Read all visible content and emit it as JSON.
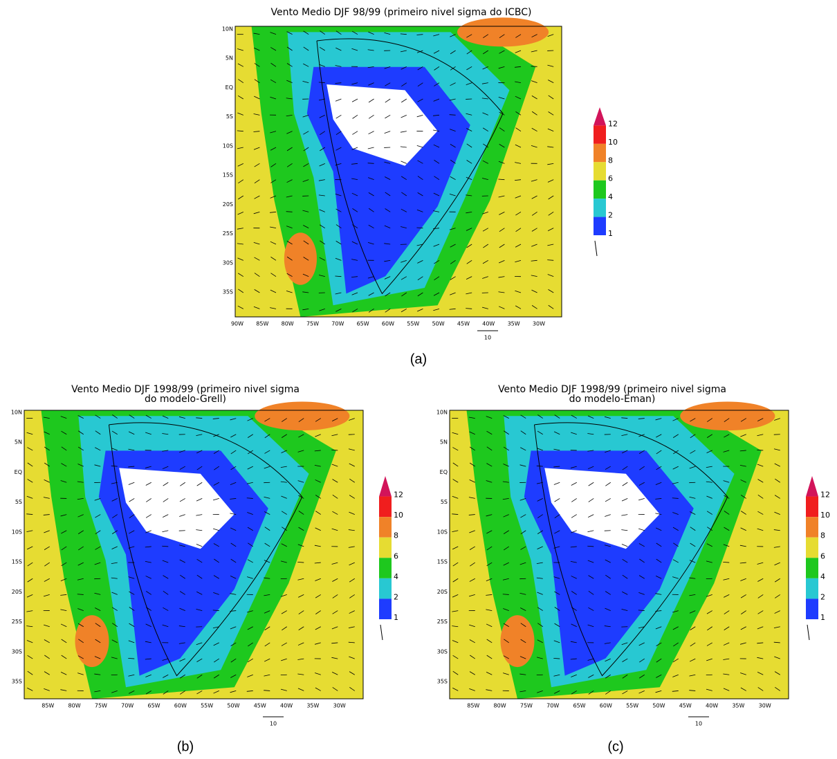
{
  "panels": [
    {
      "title_lines": [
        "Vento Medio DJF 98/99 (primeiro nivel sigma do ICBC)"
      ],
      "lat_labels": [
        "10N",
        "5N",
        "EQ",
        "5S",
        "10S",
        "15S",
        "20S",
        "25S",
        "30S",
        "35S"
      ],
      "lon_labels": [
        "90W",
        "85W",
        "80W",
        "75W",
        "70W",
        "65W",
        "60W",
        "55W",
        "50W",
        "45W",
        "40W",
        "35W",
        "30W"
      ],
      "vector_scale": "10",
      "caption": "(a)"
    },
    {
      "title_lines": [
        "Vento Medio DJF 1998/99 (primeiro nivel sigma",
        "do modelo-Grell)"
      ],
      "lat_labels": [
        "10N",
        "5N",
        "EQ",
        "5S",
        "10S",
        "15S",
        "20S",
        "25S",
        "30S",
        "35S"
      ],
      "lon_labels": [
        "85W",
        "80W",
        "75W",
        "70W",
        "65W",
        "60W",
        "55W",
        "50W",
        "45W",
        "40W",
        "35W",
        "30W"
      ],
      "vector_scale": "10",
      "caption": "(b)"
    },
    {
      "title_lines": [
        "Vento Medio DJF 1998/99 (primeiro nivel sigma",
        "do modelo-Eman)"
      ],
      "lat_labels": [
        "10N",
        "5N",
        "EQ",
        "5S",
        "10S",
        "15S",
        "20S",
        "25S",
        "30S",
        "35S"
      ],
      "lon_labels": [
        "85W",
        "80W",
        "75W",
        "70W",
        "65W",
        "60W",
        "55W",
        "50W",
        "45W",
        "40W",
        "35W",
        "30W"
      ],
      "vector_scale": "10",
      "caption": "(c)"
    }
  ],
  "colorbar": {
    "levels": [
      1,
      2,
      4,
      6,
      8,
      10,
      12
    ],
    "colors": [
      "#1e3cff",
      "#28c8d2",
      "#1ec81e",
      "#e6dc32",
      "#f08228",
      "#f01e1e",
      "#d2145a"
    ]
  }
}
